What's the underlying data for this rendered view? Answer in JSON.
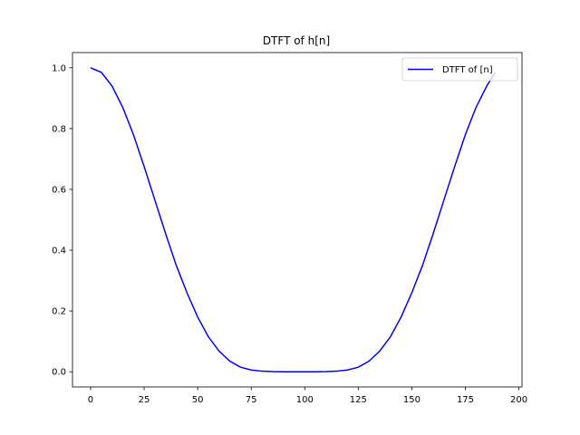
{
  "chart_data": {
    "type": "line",
    "title": "DTFT of h[n]",
    "xlabel": "",
    "ylabel": "",
    "xlim": [
      -8.45,
      201.45
    ],
    "ylim": [
      -0.05,
      1.05
    ],
    "x_ticks": [
      0,
      25,
      50,
      75,
      100,
      125,
      150,
      175,
      200
    ],
    "y_ticks": [
      0.0,
      0.2,
      0.4,
      0.6,
      0.8,
      1.0
    ],
    "x_tick_labels": [
      "0",
      "25",
      "50",
      "75",
      "100",
      "125",
      "150",
      "175",
      "200"
    ],
    "y_tick_labels": [
      "0.0",
      "0.2",
      "0.4",
      "0.6",
      "0.8",
      "1.0"
    ],
    "grid": false,
    "legend": {
      "position": "upper-right"
    },
    "series": [
      {
        "name": "DTFT of [n]",
        "color": "#0000ff",
        "x": [
          0,
          5,
          10,
          15,
          20,
          25,
          30,
          35,
          40,
          45,
          50,
          55,
          60,
          65,
          70,
          75,
          80,
          85,
          90,
          95,
          100,
          105,
          110,
          115,
          120,
          125,
          130,
          135,
          140,
          145,
          150,
          155,
          160,
          165,
          170,
          175,
          180,
          185,
          189
        ],
        "y": [
          1.0,
          0.985,
          0.94,
          0.87,
          0.78,
          0.675,
          0.565,
          0.455,
          0.35,
          0.26,
          0.18,
          0.115,
          0.068,
          0.035,
          0.015,
          0.006,
          0.002,
          0.0005,
          0.0001,
          0.0,
          0.0,
          0.0001,
          0.0005,
          0.002,
          0.006,
          0.015,
          0.035,
          0.068,
          0.115,
          0.18,
          0.26,
          0.35,
          0.455,
          0.565,
          0.675,
          0.78,
          0.87,
          0.94,
          0.985
        ]
      }
    ]
  }
}
